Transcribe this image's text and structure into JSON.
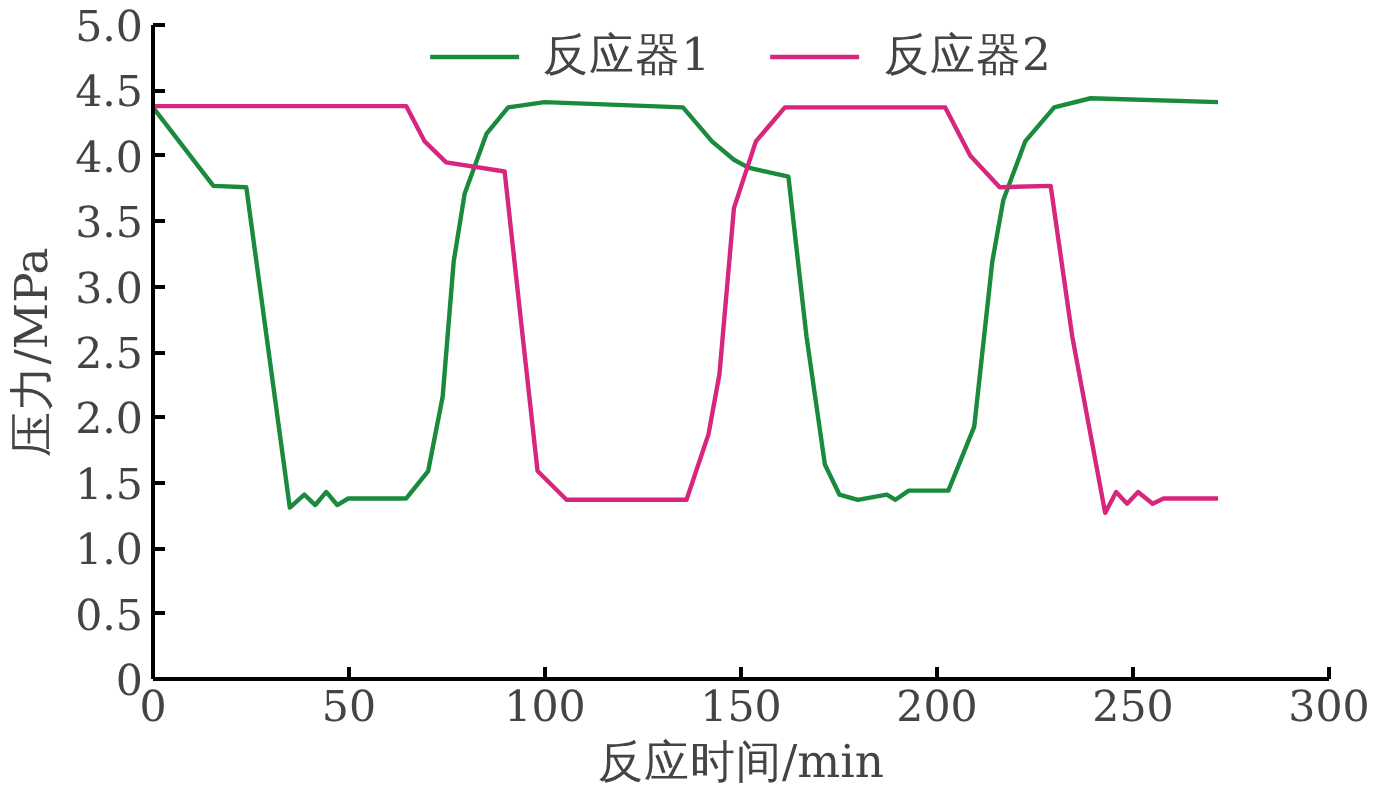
{
  "chart_data": {
    "type": "line",
    "xlabel": "反应时间/min",
    "ylabel": "压力/MPa",
    "xlim": [
      0,
      300
    ],
    "xticks": [
      0,
      50,
      100,
      150,
      200,
      250,
      300
    ],
    "ylim": [
      0,
      5
    ],
    "yticks": [
      0,
      {
        "value": 0.5,
        "label": "0.5"
      },
      {
        "value": 1,
        "label": "1.0"
      },
      {
        "value": 1.5,
        "label": "1.5"
      },
      {
        "value": 2,
        "label": "2.0"
      },
      {
        "value": 2.5,
        "label": "2.5"
      },
      {
        "value": 3,
        "label": "3.0"
      },
      {
        "value": 3.5,
        "label": "3.5"
      },
      {
        "value": 4,
        "label": "4.0"
      },
      {
        "value": 4.5,
        "label": "4.5"
      },
      {
        "value": 5,
        "label": "5.0"
      }
    ],
    "grid": false,
    "legend": "top",
    "marker": "none",
    "line_style": "solid",
    "series": [
      {
        "name": "反应器1",
        "color": "#1a8a3c",
        "x": [
          0,
          15.4,
          23.8,
          34.9,
          38.6,
          41.4,
          44.2,
          47.0,
          49.8,
          64.6,
          70.2,
          73.9,
          76.7,
          79.5,
          85.1,
          90.6,
          99.9,
          135.2,
          142.6,
          148.2,
          151.9,
          162.1,
          166.7,
          171.4,
          175.1,
          179.8,
          187.2,
          189.4,
          192.8,
          202.9,
          209.5,
          214.1,
          216.9,
          222.5,
          229.9,
          239.2,
          271.7
        ],
        "values": [
          4.37,
          3.77,
          3.76,
          1.31,
          1.41,
          1.33,
          1.43,
          1.33,
          1.38,
          1.38,
          1.59,
          2.16,
          3.19,
          3.71,
          4.17,
          4.37,
          4.41,
          4.37,
          4.11,
          3.97,
          3.91,
          3.84,
          2.62,
          1.64,
          1.41,
          1.37,
          1.41,
          1.37,
          1.44,
          1.44,
          1.93,
          3.19,
          3.66,
          4.11,
          4.37,
          4.44,
          4.41
        ]
      },
      {
        "name": "反应器2",
        "color": "#d6267e",
        "x": [
          0,
          64.6,
          69.3,
          74.8,
          89.7,
          94.3,
          98.1,
          105.5,
          136.1,
          141.7,
          144.5,
          148.2,
          153.8,
          161.2,
          202.1,
          208.5,
          216.0,
          229.0,
          234.5,
          242.9,
          245.7,
          248.5,
          251.3,
          255.0,
          257.8,
          271.7
        ],
        "values": [
          4.38,
          4.38,
          4.11,
          3.95,
          3.88,
          2.62,
          1.59,
          1.37,
          1.37,
          1.87,
          2.33,
          3.6,
          4.11,
          4.37,
          4.37,
          4.0,
          3.76,
          3.77,
          2.62,
          1.27,
          1.43,
          1.34,
          1.43,
          1.34,
          1.38,
          1.38
        ]
      }
    ]
  }
}
